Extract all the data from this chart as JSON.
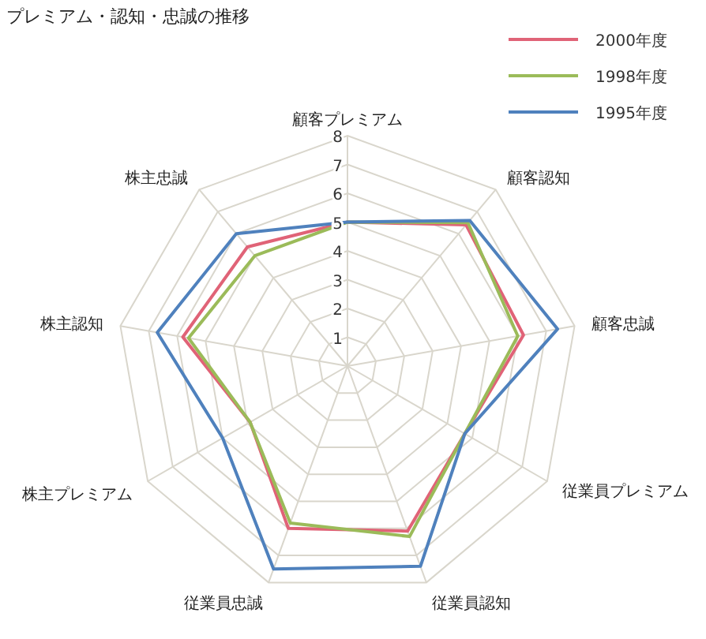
{
  "chart_data": {
    "type": "radar",
    "title": "プレミアム・認知・忠誠の推移",
    "categories": [
      "顧客プレミアム",
      "顧客認知",
      "顧客忠誠",
      "従業員プレミアム",
      "従業員認知",
      "従業員忠誠",
      "株主プレミアム",
      "株主認知",
      "株主忠誠"
    ],
    "ylim": [
      0,
      8
    ],
    "yticks": [
      1,
      2,
      3,
      4,
      5,
      6,
      7,
      8
    ],
    "legend": "top right",
    "grid": true,
    "series": [
      {
        "name": "2000年度",
        "color": "#e06377",
        "values": [
          5,
          6.4,
          6.2,
          4.7,
          6.1,
          6.0,
          3.9,
          5.8,
          5.4
        ]
      },
      {
        "name": "1998年度",
        "color": "#9bbb59",
        "values": [
          5,
          6.5,
          6.0,
          4.7,
          6.3,
          5.8,
          3.9,
          5.6,
          5.0
        ]
      },
      {
        "name": "1995年度",
        "color": "#4f81bd",
        "values": [
          5,
          6.6,
          7.4,
          4.7,
          7.4,
          7.5,
          5.0,
          6.7,
          6.0
        ]
      }
    ]
  }
}
